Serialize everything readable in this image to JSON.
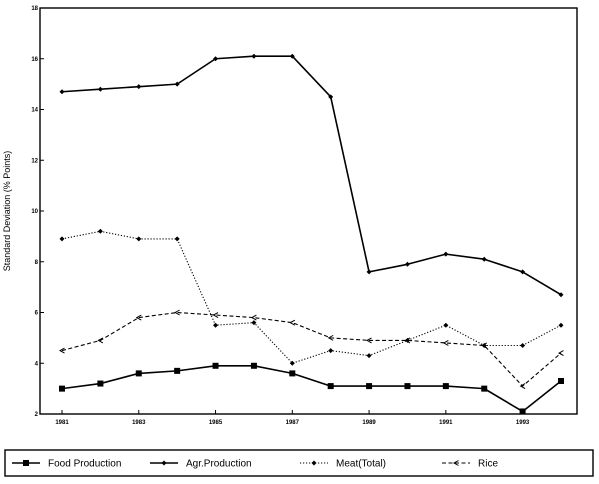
{
  "chart_data": {
    "type": "line",
    "title": "",
    "xlabel": "",
    "ylabel": "Standard Deviation (% Points)",
    "x": [
      1981,
      1982,
      1983,
      1984,
      1985,
      1986,
      1987,
      1988,
      1989,
      1990,
      1991,
      1992,
      1993,
      1994
    ],
    "xticks": [
      1981,
      1983,
      1985,
      1987,
      1989,
      1991,
      1993
    ],
    "xtick_labels": [
      "1981",
      "1983",
      "1985",
      "1987",
      "1989",
      "1991",
      "1993"
    ],
    "xlim": [
      1981,
      1994
    ],
    "yticks": [
      2,
      4,
      6,
      8,
      10,
      12,
      14,
      16,
      18
    ],
    "ytick_labels": [
      "2",
      "4",
      "6",
      "8",
      "10",
      "12",
      "14",
      "16",
      "18"
    ],
    "ylim": [
      2,
      18
    ],
    "grid": false,
    "legend_position": "bottom",
    "series": [
      {
        "name": "Food Production",
        "style": "solid",
        "marker": "square",
        "values": [
          3.0,
          3.2,
          3.6,
          3.7,
          3.9,
          3.9,
          3.6,
          3.1,
          3.1,
          3.1,
          3.1,
          3.0,
          2.1,
          3.3
        ]
      },
      {
        "name": "Agr.Production",
        "style": "solid",
        "marker": "diamond",
        "values": [
          14.7,
          14.8,
          14.9,
          15.0,
          16.0,
          16.1,
          16.1,
          14.5,
          7.6,
          7.9,
          8.3,
          8.1,
          7.6,
          6.7
        ]
      },
      {
        "name": "Meat(Total)",
        "style": "dotted",
        "marker": "diamond",
        "values": [
          8.9,
          9.2,
          8.9,
          8.9,
          5.5,
          5.6,
          4.0,
          4.5,
          4.3,
          4.9,
          5.5,
          4.7,
          4.7,
          5.5
        ]
      },
      {
        "name": "Rice",
        "style": "dashed",
        "marker": "arrow",
        "values": [
          4.5,
          4.9,
          5.8,
          6.0,
          5.9,
          5.8,
          5.6,
          5.0,
          4.9,
          4.9,
          4.8,
          4.7,
          3.1,
          4.4
        ]
      }
    ]
  }
}
